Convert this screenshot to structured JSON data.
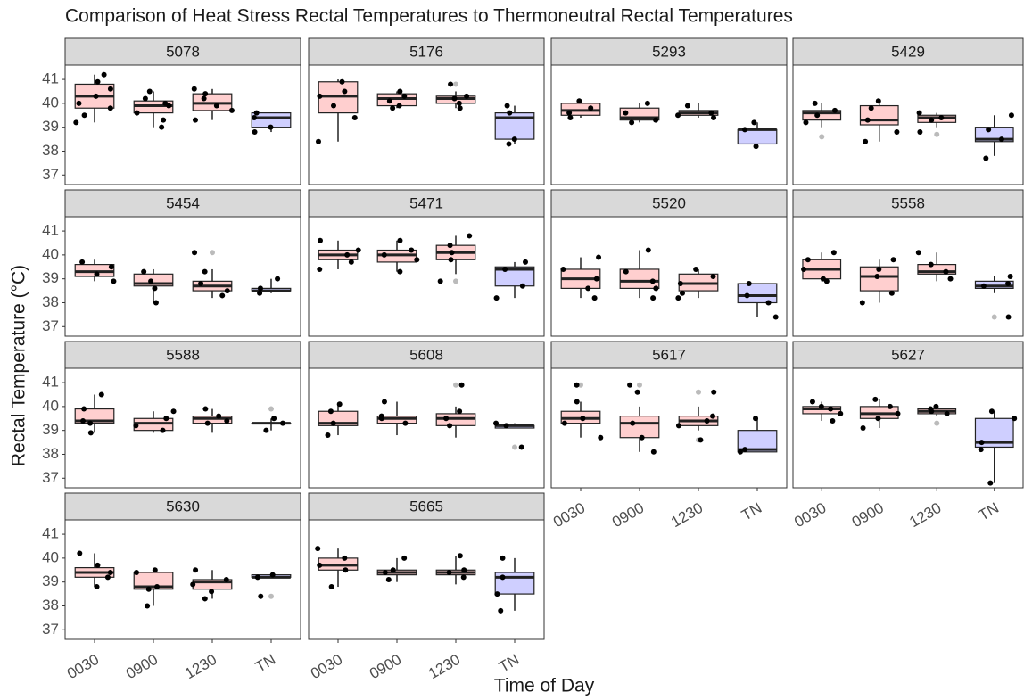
{
  "chart_data": {
    "type": "boxplot",
    "title": "Comparison of Heat Stress Rectal Temperatures to Thermoneutral Rectal Temperatures",
    "x_label": "Time of Day",
    "y_label": "Rectal Temperature (°C)",
    "categories": [
      "0030",
      "0900",
      "1230",
      "TN"
    ],
    "colors": [
      "#ffcfcf",
      "#ffcfcf",
      "#ffcfcf",
      "#cfcfff"
    ],
    "ylim": [
      36.6,
      41.6
    ],
    "yticks": [
      37,
      38,
      39,
      40,
      41
    ],
    "grid": false,
    "panels": [
      {
        "name": "5078",
        "boxes": [
          {
            "min": 39.2,
            "q1": 39.8,
            "median": 40.3,
            "q3": 40.8,
            "max": 41.2,
            "points": [
              41.2,
              40.9,
              40.6,
              40.3,
              40.0,
              39.8,
              39.5,
              39.2
            ],
            "outliers": []
          },
          {
            "min": 39.0,
            "q1": 39.6,
            "median": 39.9,
            "q3": 40.1,
            "max": 40.5,
            "points": [
              40.5,
              40.2,
              40.0,
              39.9,
              39.6,
              39.3,
              39.0
            ],
            "outliers": []
          },
          {
            "min": 39.3,
            "q1": 39.7,
            "median": 40.0,
            "q3": 40.4,
            "max": 40.6,
            "points": [
              40.6,
              40.4,
              40.2,
              39.9,
              39.7,
              39.3
            ],
            "outliers": []
          },
          {
            "min": 38.8,
            "q1": 39.0,
            "median": 39.4,
            "q3": 39.6,
            "max": 39.6,
            "points": [
              39.6,
              39.4,
              39.0,
              38.8
            ],
            "outliers": []
          }
        ]
      },
      {
        "name": "5176",
        "boxes": [
          {
            "min": 38.4,
            "q1": 39.6,
            "median": 40.3,
            "q3": 40.9,
            "max": 41.0,
            "points": [
              40.9,
              40.5,
              40.3,
              39.9,
              39.4,
              38.4
            ],
            "outliers": []
          },
          {
            "min": 39.8,
            "q1": 39.9,
            "median": 40.2,
            "q3": 40.4,
            "max": 40.5,
            "points": [
              40.5,
              40.3,
              40.1,
              39.9,
              39.8
            ],
            "outliers": []
          },
          {
            "min": 39.8,
            "q1": 40.0,
            "median": 40.2,
            "q3": 40.3,
            "max": 40.5,
            "points": [
              40.8,
              40.3,
              40.2,
              40.0,
              39.8
            ],
            "outliers": [
              40.8
            ]
          },
          {
            "min": 38.3,
            "q1": 38.5,
            "median": 39.4,
            "q3": 39.6,
            "max": 39.9,
            "points": [
              39.9,
              39.6,
              38.5,
              38.3
            ],
            "outliers": []
          }
        ]
      },
      {
        "name": "5293",
        "boxes": [
          {
            "min": 39.4,
            "q1": 39.5,
            "median": 39.7,
            "q3": 40.0,
            "max": 40.1,
            "points": [
              40.1,
              39.8,
              39.6,
              39.4
            ],
            "outliers": []
          },
          {
            "min": 39.2,
            "q1": 39.3,
            "median": 39.4,
            "q3": 39.8,
            "max": 40.0,
            "points": [
              40.0,
              39.6,
              39.3,
              39.2
            ],
            "outliers": []
          },
          {
            "min": 39.4,
            "q1": 39.5,
            "median": 39.6,
            "q3": 39.7,
            "max": 40.0,
            "points": [
              39.9,
              39.6,
              39.5,
              39.4
            ],
            "outliers": []
          },
          {
            "min": 38.2,
            "q1": 38.3,
            "median": 38.9,
            "q3": 38.9,
            "max": 39.2,
            "points": [
              39.2,
              38.9,
              38.2
            ],
            "outliers": []
          }
        ]
      },
      {
        "name": "5429",
        "boxes": [
          {
            "min": 39.0,
            "q1": 39.3,
            "median": 39.6,
            "q3": 39.7,
            "max": 40.0,
            "points": [
              40.0,
              39.7,
              39.5,
              39.2
            ],
            "outliers": [
              38.6
            ]
          },
          {
            "min": 38.4,
            "q1": 39.1,
            "median": 39.3,
            "q3": 39.9,
            "max": 40.1,
            "points": [
              40.1,
              39.8,
              39.3,
              38.8,
              38.4
            ],
            "outliers": []
          },
          {
            "min": 39.0,
            "q1": 39.2,
            "median": 39.4,
            "q3": 39.5,
            "max": 39.6,
            "points": [
              39.6,
              39.4,
              39.3,
              38.8
            ],
            "outliers": [
              38.7
            ]
          },
          {
            "min": 37.8,
            "q1": 38.4,
            "median": 38.5,
            "q3": 39.0,
            "max": 39.5,
            "points": [
              39.5,
              38.9,
              38.5,
              37.7
            ],
            "outliers": []
          }
        ]
      },
      {
        "name": "5454",
        "boxes": [
          {
            "min": 38.9,
            "q1": 39.1,
            "median": 39.3,
            "q3": 39.6,
            "max": 39.8,
            "points": [
              39.7,
              39.5,
              39.2,
              38.9
            ],
            "outliers": []
          },
          {
            "min": 38.0,
            "q1": 38.7,
            "median": 38.8,
            "q3": 39.2,
            "max": 39.4,
            "points": [
              39.3,
              38.9,
              38.6,
              38.0
            ],
            "outliers": []
          },
          {
            "min": 38.2,
            "q1": 38.5,
            "median": 38.7,
            "q3": 38.9,
            "max": 39.4,
            "points": [
              40.1,
              39.3,
              38.8,
              38.5,
              38.3
            ],
            "outliers": [
              40.1
            ]
          },
          {
            "min": 38.4,
            "q1": 38.5,
            "median": 38.5,
            "q3": 38.6,
            "max": 39.0,
            "points": [
              39.0,
              38.6,
              38.4
            ],
            "outliers": []
          }
        ]
      },
      {
        "name": "5471",
        "boxes": [
          {
            "min": 39.4,
            "q1": 39.8,
            "median": 40.0,
            "q3": 40.2,
            "max": 40.6,
            "points": [
              40.6,
              40.2,
              40.0,
              39.7,
              39.4
            ],
            "outliers": []
          },
          {
            "min": 39.3,
            "q1": 39.7,
            "median": 40.0,
            "q3": 40.2,
            "max": 40.6,
            "points": [
              40.6,
              40.2,
              40.0,
              39.8,
              39.3
            ],
            "outliers": []
          },
          {
            "min": 39.2,
            "q1": 39.8,
            "median": 40.1,
            "q3": 40.4,
            "max": 40.8,
            "points": [
              40.8,
              40.4,
              40.1,
              39.8,
              38.9
            ],
            "outliers": [
              38.9
            ]
          },
          {
            "min": 38.2,
            "q1": 38.7,
            "median": 39.4,
            "q3": 39.5,
            "max": 39.7,
            "points": [
              39.7,
              39.4,
              38.7,
              38.2
            ],
            "outliers": []
          }
        ]
      },
      {
        "name": "5520",
        "boxes": [
          {
            "min": 38.2,
            "q1": 38.6,
            "median": 39.0,
            "q3": 39.4,
            "max": 39.9,
            "points": [
              39.9,
              39.4,
              39.0,
              38.6,
              38.2
            ],
            "outliers": []
          },
          {
            "min": 38.2,
            "q1": 38.6,
            "median": 38.9,
            "q3": 39.4,
            "max": 40.2,
            "points": [
              40.2,
              39.3,
              38.9,
              38.6,
              38.2
            ],
            "outliers": []
          },
          {
            "min": 38.2,
            "q1": 38.5,
            "median": 38.8,
            "q3": 39.2,
            "max": 39.4,
            "points": [
              39.4,
              39.1,
              38.8,
              38.4,
              38.2
            ],
            "outliers": []
          },
          {
            "min": 37.4,
            "q1": 38.0,
            "median": 38.3,
            "q3": 38.8,
            "max": 38.8,
            "points": [
              38.8,
              38.3,
              38.0,
              37.4
            ],
            "outliers": []
          }
        ]
      },
      {
        "name": "5558",
        "boxes": [
          {
            "min": 38.9,
            "q1": 39.0,
            "median": 39.4,
            "q3": 39.8,
            "max": 40.1,
            "points": [
              40.1,
              39.8,
              39.4,
              39.0,
              38.9
            ],
            "outliers": []
          },
          {
            "min": 38.0,
            "q1": 38.5,
            "median": 39.1,
            "q3": 39.5,
            "max": 39.8,
            "points": [
              39.8,
              39.4,
              39.1,
              38.4,
              38.0
            ],
            "outliers": []
          },
          {
            "min": 38.9,
            "q1": 39.2,
            "median": 39.3,
            "q3": 39.6,
            "max": 40.1,
            "points": [
              40.1,
              39.6,
              39.3,
              39.0
            ],
            "outliers": []
          },
          {
            "min": 38.4,
            "q1": 38.6,
            "median": 38.7,
            "q3": 38.9,
            "max": 39.1,
            "points": [
              39.1,
              38.8,
              38.7,
              37.4
            ],
            "outliers": [
              37.4
            ]
          }
        ]
      },
      {
        "name": "5588",
        "boxes": [
          {
            "min": 38.9,
            "q1": 39.3,
            "median": 39.4,
            "q3": 39.9,
            "max": 40.5,
            "points": [
              40.5,
              39.9,
              39.4,
              39.3,
              38.9
            ],
            "outliers": []
          },
          {
            "min": 38.9,
            "q1": 39.0,
            "median": 39.3,
            "q3": 39.5,
            "max": 39.8,
            "points": [
              39.8,
              39.5,
              39.2,
              39.0
            ],
            "outliers": []
          },
          {
            "min": 38.9,
            "q1": 39.3,
            "median": 39.5,
            "q3": 39.6,
            "max": 39.9,
            "points": [
              39.9,
              39.6,
              39.4,
              39.3
            ],
            "outliers": []
          },
          {
            "min": 39.0,
            "q1": 39.3,
            "median": 39.3,
            "q3": 39.3,
            "max": 39.5,
            "points": [
              39.5,
              39.3,
              39.0
            ],
            "outliers": [
              39.9
            ]
          }
        ]
      },
      {
        "name": "5608",
        "boxes": [
          {
            "min": 38.8,
            "q1": 39.2,
            "median": 39.3,
            "q3": 39.8,
            "max": 40.1,
            "points": [
              40.1,
              39.8,
              39.3,
              38.8
            ],
            "outliers": []
          },
          {
            "min": 38.8,
            "q1": 39.3,
            "median": 39.5,
            "q3": 39.6,
            "max": 40.2,
            "points": [
              40.2,
              39.6,
              39.5,
              39.3
            ],
            "outliers": []
          },
          {
            "min": 38.7,
            "q1": 39.2,
            "median": 39.5,
            "q3": 39.7,
            "max": 40.0,
            "points": [
              40.9,
              39.8,
              39.5,
              39.2
            ],
            "outliers": [
              40.9
            ]
          },
          {
            "min": 39.1,
            "q1": 39.1,
            "median": 39.2,
            "q3": 39.2,
            "max": 39.3,
            "points": [
              39.3,
              39.2,
              38.3
            ],
            "outliers": [
              38.3
            ]
          }
        ]
      },
      {
        "name": "5617",
        "boxes": [
          {
            "min": 38.7,
            "q1": 39.3,
            "median": 39.5,
            "q3": 39.8,
            "max": 40.2,
            "points": [
              40.9,
              40.2,
              39.5,
              39.3,
              38.7
            ],
            "outliers": [
              40.9
            ]
          },
          {
            "min": 38.1,
            "q1": 38.7,
            "median": 39.3,
            "q3": 39.6,
            "max": 40.0,
            "points": [
              40.9,
              40.6,
              39.3,
              38.7,
              38.1
            ],
            "outliers": [
              40.9
            ]
          },
          {
            "min": 39.0,
            "q1": 39.2,
            "median": 39.4,
            "q3": 39.6,
            "max": 40.0,
            "points": [
              40.6,
              39.6,
              39.4,
              39.2,
              38.6
            ],
            "outliers": [
              40.6,
              38.6
            ]
          },
          {
            "min": 38.1,
            "q1": 38.1,
            "median": 38.2,
            "q3": 39.0,
            "max": 39.5,
            "points": [
              39.5,
              38.2,
              38.1
            ],
            "outliers": []
          }
        ]
      },
      {
        "name": "5627",
        "boxes": [
          {
            "min": 39.4,
            "q1": 39.7,
            "median": 39.9,
            "q3": 40.0,
            "max": 40.2,
            "points": [
              40.2,
              40.0,
              39.9,
              39.7,
              39.4
            ],
            "outliers": []
          },
          {
            "min": 39.1,
            "q1": 39.5,
            "median": 39.7,
            "q3": 40.0,
            "max": 40.3,
            "points": [
              40.3,
              40.0,
              39.7,
              39.5,
              39.1
            ],
            "outliers": []
          },
          {
            "min": 39.6,
            "q1": 39.7,
            "median": 39.8,
            "q3": 39.9,
            "max": 40.0,
            "points": [
              40.0,
              39.9,
              39.8,
              39.7
            ],
            "outliers": [
              39.3
            ]
          },
          {
            "min": 36.8,
            "q1": 38.3,
            "median": 38.5,
            "q3": 39.5,
            "max": 39.8,
            "points": [
              39.8,
              39.5,
              38.5,
              38.2,
              36.8
            ],
            "outliers": []
          }
        ]
      },
      {
        "name": "5630",
        "boxes": [
          {
            "min": 38.8,
            "q1": 39.2,
            "median": 39.4,
            "q3": 39.6,
            "max": 40.2,
            "points": [
              40.2,
              39.7,
              39.4,
              39.2,
              38.8
            ],
            "outliers": []
          },
          {
            "min": 38.0,
            "q1": 38.7,
            "median": 38.8,
            "q3": 39.4,
            "max": 39.5,
            "points": [
              39.5,
              39.4,
              38.8,
              38.7,
              38.0
            ],
            "outliers": []
          },
          {
            "min": 38.3,
            "q1": 38.7,
            "median": 39.0,
            "q3": 39.1,
            "max": 39.5,
            "points": [
              39.5,
              39.1,
              38.9,
              38.6,
              38.3
            ],
            "outliers": []
          },
          {
            "min": 39.2,
            "q1": 39.2,
            "median": 39.2,
            "q3": 39.3,
            "max": 39.3,
            "points": [
              39.3,
              39.2,
              38.4
            ],
            "outliers": [
              38.4
            ]
          }
        ]
      },
      {
        "name": "5665",
        "boxes": [
          {
            "min": 38.8,
            "q1": 39.5,
            "median": 39.7,
            "q3": 40.0,
            "max": 40.4,
            "points": [
              40.4,
              40.0,
              39.7,
              39.5,
              38.8
            ],
            "outliers": []
          },
          {
            "min": 39.0,
            "q1": 39.3,
            "median": 39.4,
            "q3": 39.5,
            "max": 40.0,
            "points": [
              40.0,
              39.5,
              39.4,
              39.1
            ],
            "outliers": []
          },
          {
            "min": 38.9,
            "q1": 39.3,
            "median": 39.4,
            "q3": 39.5,
            "max": 40.1,
            "points": [
              40.1,
              39.5,
              39.4,
              39.2
            ],
            "outliers": []
          },
          {
            "min": 37.8,
            "q1": 38.5,
            "median": 39.2,
            "q3": 39.4,
            "max": 40.0,
            "points": [
              40.0,
              39.2,
              38.5,
              37.8
            ],
            "outliers": []
          }
        ]
      }
    ]
  }
}
